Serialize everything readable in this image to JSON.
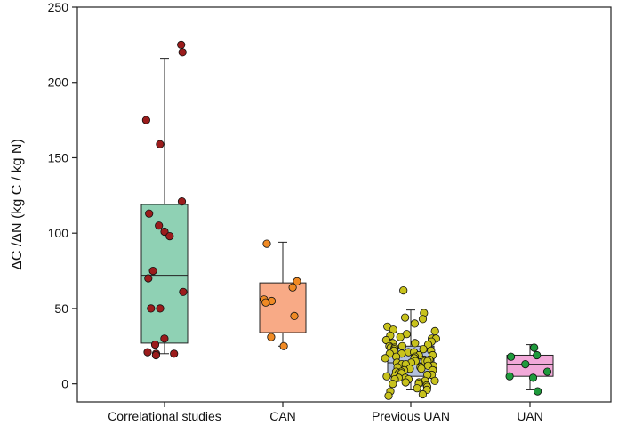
{
  "chart_data": {
    "type": "box",
    "title": "",
    "xlabel": "",
    "ylabel": "ΔC /ΔN (kg C / kg N)",
    "ylim": [
      -12,
      250
    ],
    "yticks": [
      0,
      50,
      100,
      150,
      200,
      250
    ],
    "grid": false,
    "legend": "none",
    "categories": [
      "Correlational studies",
      "CAN",
      "Previous UAN",
      "UAN"
    ],
    "groups": [
      {
        "category": "Correlational studies",
        "box_color": "#8fd1b4",
        "point_color": "#9b1c1c",
        "whisker_low": 20,
        "q1": 27,
        "median": 72,
        "q3": 119,
        "whisker_high": 216,
        "points": [
          225,
          220,
          175,
          159,
          121,
          113,
          105,
          101,
          98,
          75,
          70,
          61,
          50,
          50,
          30,
          26,
          21,
          20,
          20,
          19
        ]
      },
      {
        "category": "CAN",
        "box_color": "#f8aa86",
        "point_color": "#f08a24",
        "whisker_low": 25,
        "q1": 34,
        "median": 55,
        "q3": 67,
        "whisker_high": 94,
        "points": [
          93,
          68,
          64,
          56,
          55,
          54,
          45,
          31,
          25
        ]
      },
      {
        "category": "Previous UAN",
        "box_color": "#b3c1dd",
        "point_color": "#c8c21c",
        "whisker_low": -4,
        "q1": 5,
        "median": 14,
        "q3": 25,
        "whisker_high": 49,
        "points": [
          62,
          47,
          44,
          43,
          40,
          38,
          36,
          35,
          33,
          32,
          31,
          30,
          30,
          29,
          28,
          27,
          27,
          26,
          25,
          25,
          24,
          24,
          23,
          23,
          22,
          22,
          21,
          21,
          20,
          20,
          19,
          19,
          18,
          18,
          17,
          17,
          16,
          16,
          15,
          15,
          15,
          14,
          14,
          13,
          13,
          12,
          12,
          11,
          11,
          10,
          10,
          9,
          9,
          8,
          8,
          7,
          7,
          6,
          6,
          5,
          5,
          4,
          4,
          3,
          3,
          2,
          2,
          1,
          1,
          0,
          0,
          -1,
          -2,
          -3,
          -4,
          -5,
          -7,
          -8
        ]
      },
      {
        "category": "UAN",
        "box_color": "#f2a9d9",
        "point_color": "#1f9a3c",
        "whisker_low": -4,
        "q1": 5,
        "median": 13,
        "q3": 19,
        "whisker_high": 26,
        "points": [
          24,
          19,
          18,
          13,
          8,
          5,
          4,
          -5
        ]
      }
    ]
  }
}
